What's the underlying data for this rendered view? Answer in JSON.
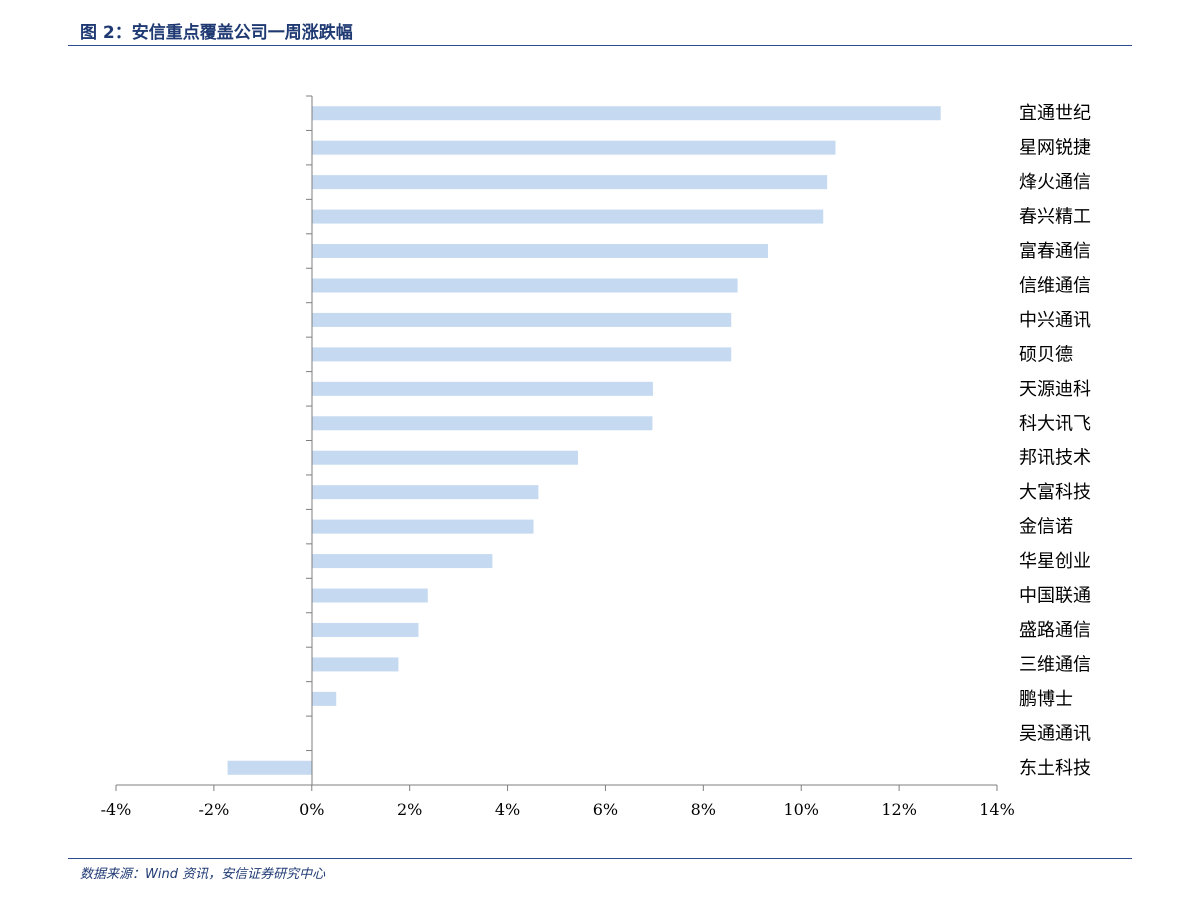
{
  "header": {
    "title": "图 2：安信重点覆盖公司一周涨跌幅"
  },
  "footer": {
    "source": "数据来源：Wind 资讯，安信证券研究中心"
  },
  "chart_data": {
    "type": "bar",
    "orientation": "horizontal",
    "title": "",
    "xlabel": "",
    "ylabel": "",
    "xlim": [
      -4,
      14
    ],
    "x_ticks": [
      "-4%",
      "-2%",
      "0%",
      "2%",
      "4%",
      "6%",
      "8%",
      "10%",
      "12%",
      "14%"
    ],
    "x_tick_values": [
      -4,
      -2,
      0,
      2,
      4,
      6,
      8,
      10,
      12,
      14
    ],
    "unit": "%",
    "grid": false,
    "legend": "none",
    "bar_color": "#c5d9f1",
    "axis_color": "#7f7f7f",
    "categories": [
      "宜通世纪",
      "星网锐捷",
      "烽火通信",
      "春兴精工",
      "富春通信",
      "信维通信",
      "中兴通讯",
      "硕贝德",
      "天源迪科",
      "科大讯飞",
      "邦讯技术",
      "大富科技",
      "金信诺",
      "华星创业",
      "中国联通",
      "盛路通信",
      "三维通信",
      "鹏博士",
      "吴通通讯",
      "东土科技"
    ],
    "values": [
      12.85,
      10.7,
      10.53,
      10.45,
      9.32,
      8.7,
      8.57,
      8.57,
      6.97,
      6.96,
      5.44,
      4.63,
      4.53,
      3.69,
      2.37,
      2.18,
      1.77,
      0.5,
      0.0,
      -1.72
    ]
  }
}
